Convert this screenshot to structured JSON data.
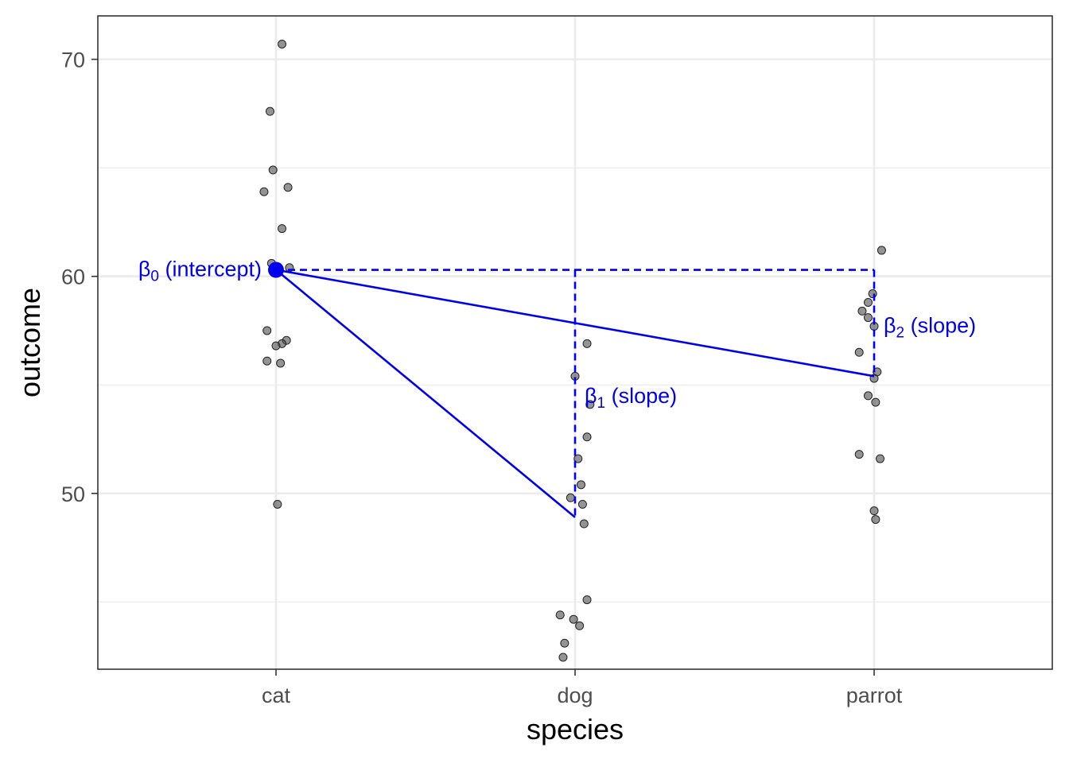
{
  "chart_data": {
    "type": "scatter",
    "xlabel": "species",
    "ylabel": "outcome",
    "categories": [
      "cat",
      "dog",
      "parrot"
    ],
    "yticks": [
      50,
      60,
      70
    ],
    "ylim": [
      41.9,
      72.0
    ],
    "grid": true,
    "points": [
      {
        "category": "cat",
        "x_offset": 0.02,
        "y": 70.7
      },
      {
        "category": "cat",
        "x_offset": -0.02,
        "y": 67.6
      },
      {
        "category": "cat",
        "x_offset": -0.01,
        "y": 64.9
      },
      {
        "category": "cat",
        "x_offset": -0.04,
        "y": 63.9
      },
      {
        "category": "cat",
        "x_offset": 0.04,
        "y": 64.1
      },
      {
        "category": "cat",
        "x_offset": 0.02,
        "y": 62.2
      },
      {
        "category": "cat",
        "x_offset": -0.015,
        "y": 60.6
      },
      {
        "category": "cat",
        "x_offset": 0.045,
        "y": 60.4
      },
      {
        "category": "cat",
        "x_offset": -0.03,
        "y": 57.5
      },
      {
        "category": "cat",
        "x_offset": 0.035,
        "y": 57.05
      },
      {
        "category": "cat",
        "x_offset": 0.02,
        "y": 56.9
      },
      {
        "category": "cat",
        "x_offset": 0.0,
        "y": 56.8
      },
      {
        "category": "cat",
        "x_offset": -0.03,
        "y": 56.1
      },
      {
        "category": "cat",
        "x_offset": 0.015,
        "y": 56.0
      },
      {
        "category": "cat",
        "x_offset": 0.005,
        "y": 49.5
      },
      {
        "category": "dog",
        "x_offset": 0.04,
        "y": 56.9
      },
      {
        "category": "dog",
        "x_offset": 0.0,
        "y": 55.4
      },
      {
        "category": "dog",
        "x_offset": 0.05,
        "y": 54.1
      },
      {
        "category": "dog",
        "x_offset": 0.04,
        "y": 52.6
      },
      {
        "category": "dog",
        "x_offset": 0.01,
        "y": 51.6
      },
      {
        "category": "dog",
        "x_offset": 0.02,
        "y": 50.4
      },
      {
        "category": "dog",
        "x_offset": -0.015,
        "y": 49.8
      },
      {
        "category": "dog",
        "x_offset": 0.025,
        "y": 49.5
      },
      {
        "category": "dog",
        "x_offset": 0.03,
        "y": 48.6
      },
      {
        "category": "dog",
        "x_offset": 0.04,
        "y": 45.1
      },
      {
        "category": "dog",
        "x_offset": -0.05,
        "y": 44.4
      },
      {
        "category": "dog",
        "x_offset": -0.005,
        "y": 44.2
      },
      {
        "category": "dog",
        "x_offset": 0.015,
        "y": 43.9
      },
      {
        "category": "dog",
        "x_offset": -0.035,
        "y": 43.1
      },
      {
        "category": "dog",
        "x_offset": -0.04,
        "y": 42.45
      },
      {
        "category": "parrot",
        "x_offset": 0.025,
        "y": 61.2
      },
      {
        "category": "parrot",
        "x_offset": -0.005,
        "y": 59.2
      },
      {
        "category": "parrot",
        "x_offset": -0.02,
        "y": 58.8
      },
      {
        "category": "parrot",
        "x_offset": -0.04,
        "y": 58.4
      },
      {
        "category": "parrot",
        "x_offset": -0.02,
        "y": 58.1
      },
      {
        "category": "parrot",
        "x_offset": 0.0,
        "y": 57.7
      },
      {
        "category": "parrot",
        "x_offset": -0.05,
        "y": 56.5
      },
      {
        "category": "parrot",
        "x_offset": 0.01,
        "y": 55.6
      },
      {
        "category": "parrot",
        "x_offset": 0.0,
        "y": 55.3
      },
      {
        "category": "parrot",
        "x_offset": -0.02,
        "y": 54.5
      },
      {
        "category": "parrot",
        "x_offset": 0.005,
        "y": 54.2
      },
      {
        "category": "parrot",
        "x_offset": -0.05,
        "y": 51.8
      },
      {
        "category": "parrot",
        "x_offset": 0.02,
        "y": 51.6
      },
      {
        "category": "parrot",
        "x_offset": 0.0,
        "y": 49.2
      },
      {
        "category": "parrot",
        "x_offset": 0.005,
        "y": 48.8
      }
    ],
    "group_means": {
      "cat": 60.3,
      "dog": 48.9,
      "parrot": 55.4
    },
    "annotations": {
      "intercept": {
        "symbol": "β",
        "sub": "0",
        "text": " (intercept)"
      },
      "slope1": {
        "symbol": "β",
        "sub": "1",
        "text": " (slope)"
      },
      "slope2": {
        "symbol": "β",
        "sub": "2",
        "text": " (slope)"
      }
    },
    "colors": {
      "points": "#4d4d4d",
      "annotation": "#0000ee",
      "grid": "#ebebeb",
      "panel_border": "#333333"
    }
  }
}
